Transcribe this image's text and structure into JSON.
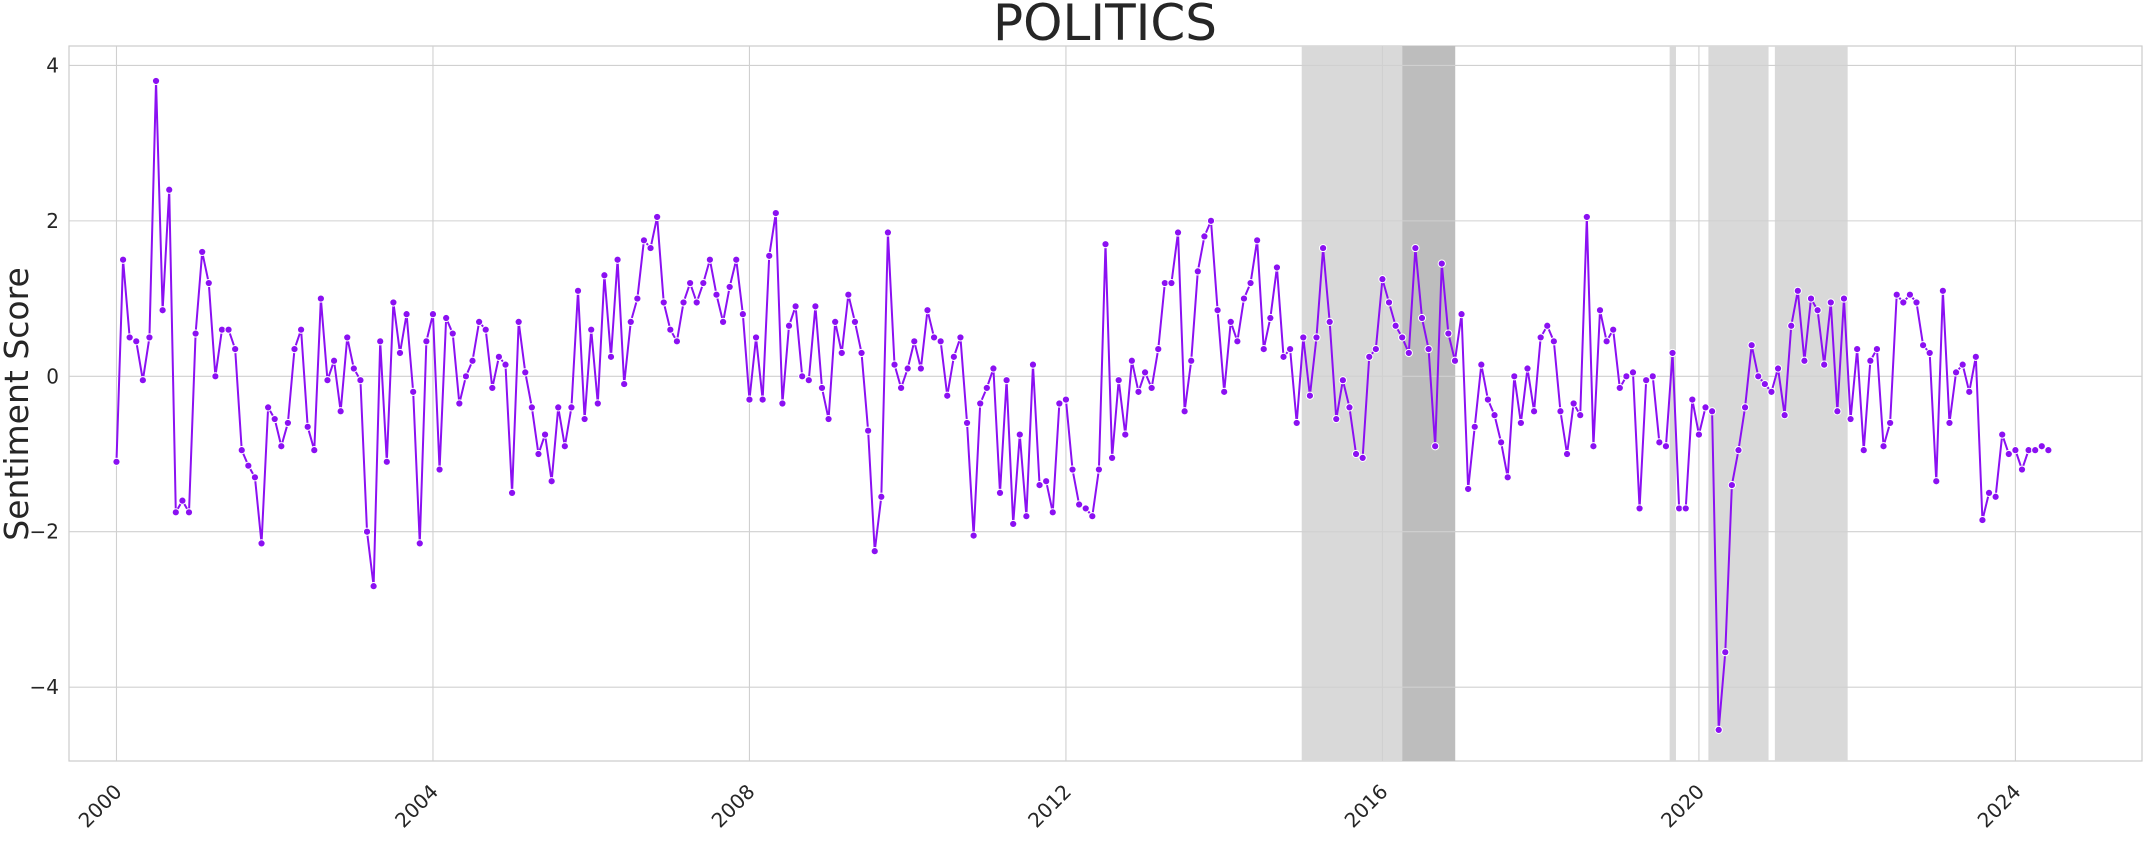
{
  "chart_data": {
    "type": "line",
    "title": "POLITICS",
    "xlabel": "",
    "ylabel": "Sentiment Score",
    "xlim": [
      1999.4,
      2025.6
    ],
    "ylim": [
      -4.95,
      4.25
    ],
    "x_ticks": [
      2000,
      2004,
      2008,
      2012,
      2016,
      2020,
      2024
    ],
    "x_tick_labels": [
      "2000",
      "2004",
      "2008",
      "2012",
      "2016",
      "2020",
      "2024"
    ],
    "y_ticks": [
      4,
      2,
      0,
      -2,
      -4
    ],
    "y_tick_labels": [
      "4",
      "2",
      "0",
      "−2",
      "−4"
    ],
    "grid": true,
    "line_color": "#8B10F2",
    "shaded_regions": [
      {
        "start": 2014.98,
        "end": 2016.25,
        "color": "#d9d9d9"
      },
      {
        "start": 2016.25,
        "end": 2016.92,
        "color": "#bdbdbd"
      },
      {
        "start": 2019.63,
        "end": 2019.71,
        "color": "#d9d9d9"
      },
      {
        "start": 2020.12,
        "end": 2020.88,
        "color": "#d9d9d9"
      },
      {
        "start": 2020.96,
        "end": 2021.88,
        "color": "#d9d9d9"
      }
    ],
    "series": [
      {
        "start_year": 2000,
        "step_months": 1,
        "values": [
          -1.1,
          1.5,
          0.5,
          0.45,
          -0.05,
          0.5,
          3.8,
          0.85,
          2.4,
          -1.75,
          -1.6,
          -1.75,
          0.55,
          1.6,
          1.2,
          0.0,
          0.6,
          0.6,
          0.35,
          -0.95,
          -1.15,
          -1.3,
          -2.15,
          -0.4,
          -0.55,
          -0.9,
          -0.6,
          0.35,
          0.6,
          -0.65,
          -0.95,
          1.0,
          -0.05,
          0.2,
          -0.45,
          0.5,
          0.1,
          -0.05,
          -2.0,
          -2.7,
          0.45,
          -1.1,
          0.95,
          0.3,
          0.8,
          -0.2,
          -2.15,
          0.45,
          0.8,
          -1.2,
          0.75,
          0.55,
          -0.35,
          0.0,
          0.2,
          0.7,
          0.6,
          -0.15,
          0.25,
          0.15,
          -1.5,
          0.7,
          0.05,
          -0.4,
          -1.0,
          -0.75,
          -1.35,
          -0.4,
          -0.9,
          -0.4,
          1.1,
          -0.55,
          0.6,
          -0.35,
          1.3,
          0.25,
          1.5,
          -0.1,
          0.7,
          1.0,
          1.75,
          1.65,
          2.05,
          0.95,
          0.6,
          0.45,
          0.95,
          1.2,
          0.95,
          1.2,
          1.5,
          1.05,
          0.7,
          1.15,
          1.5,
          0.8,
          -0.3,
          0.5,
          -0.3,
          1.55,
          2.1,
          -0.35,
          0.65,
          0.9,
          0.0,
          -0.05,
          0.9,
          -0.15,
          -0.55,
          0.7,
          0.3,
          1.05,
          0.7,
          0.3,
          -0.7,
          -2.25,
          -1.55,
          1.85,
          0.15,
          -0.15,
          0.1,
          0.45,
          0.1,
          0.85,
          0.5,
          0.45,
          -0.25,
          0.25,
          0.5,
          -0.6,
          -2.05,
          -0.35,
          -0.15,
          0.1,
          -1.5,
          -0.05,
          -1.9,
          -0.75,
          -1.8,
          0.15,
          -1.4,
          -1.35,
          -1.75,
          -0.35,
          -0.3,
          -1.2,
          -1.65,
          -1.7,
          -1.8,
          -1.2,
          1.7,
          -1.05,
          -0.05,
          -0.75,
          0.2,
          -0.2,
          0.05,
          -0.15,
          0.35,
          1.2,
          1.2,
          1.85,
          -0.45,
          0.2,
          1.35,
          1.8,
          2.0,
          0.85,
          -0.2,
          0.7,
          0.45,
          1.0,
          1.2,
          1.75,
          0.35,
          0.75,
          1.4,
          0.25,
          0.35,
          -0.6,
          0.5,
          -0.25,
          0.5,
          1.65,
          0.7,
          -0.55,
          -0.05,
          -0.4,
          -1.0,
          -1.05,
          0.25,
          0.35,
          1.25,
          0.95,
          0.65,
          0.5,
          0.3,
          1.65,
          0.75,
          0.35,
          -0.9,
          1.45,
          0.55,
          0.2,
          0.8,
          -1.45,
          -0.65,
          0.15,
          -0.3,
          -0.5,
          -0.85,
          -1.3,
          0.0,
          -0.6,
          0.1,
          -0.45,
          0.5,
          0.65,
          0.45,
          -0.45,
          -1.0,
          -0.35,
          -0.5,
          2.05,
          -0.9,
          0.85,
          0.45,
          0.6,
          -0.15,
          0.0,
          0.05,
          -1.7,
          -0.05,
          0.0,
          -0.85,
          -0.9,
          0.3,
          -1.7,
          -1.7,
          -0.3,
          -0.75,
          -0.4,
          -0.45,
          -4.55,
          -3.55,
          -1.4,
          -0.95,
          -0.4,
          0.4,
          0.0,
          -0.1,
          -0.2,
          0.1,
          -0.5,
          0.65,
          1.1,
          0.2,
          1.0,
          0.85,
          0.15,
          0.95,
          -0.45,
          1.0,
          -0.55,
          0.35,
          -0.95,
          0.2,
          0.35,
          -0.9,
          -0.6,
          1.05,
          0.95,
          1.05,
          0.95,
          0.4,
          0.3,
          -1.35,
          1.1,
          -0.6,
          0.05,
          0.15,
          -0.2,
          0.25,
          -1.85,
          -1.5,
          -1.55,
          -0.75,
          -1.0,
          -0.95,
          -1.2,
          -0.95,
          -0.95,
          -0.9,
          -0.95
        ]
      }
    ]
  }
}
